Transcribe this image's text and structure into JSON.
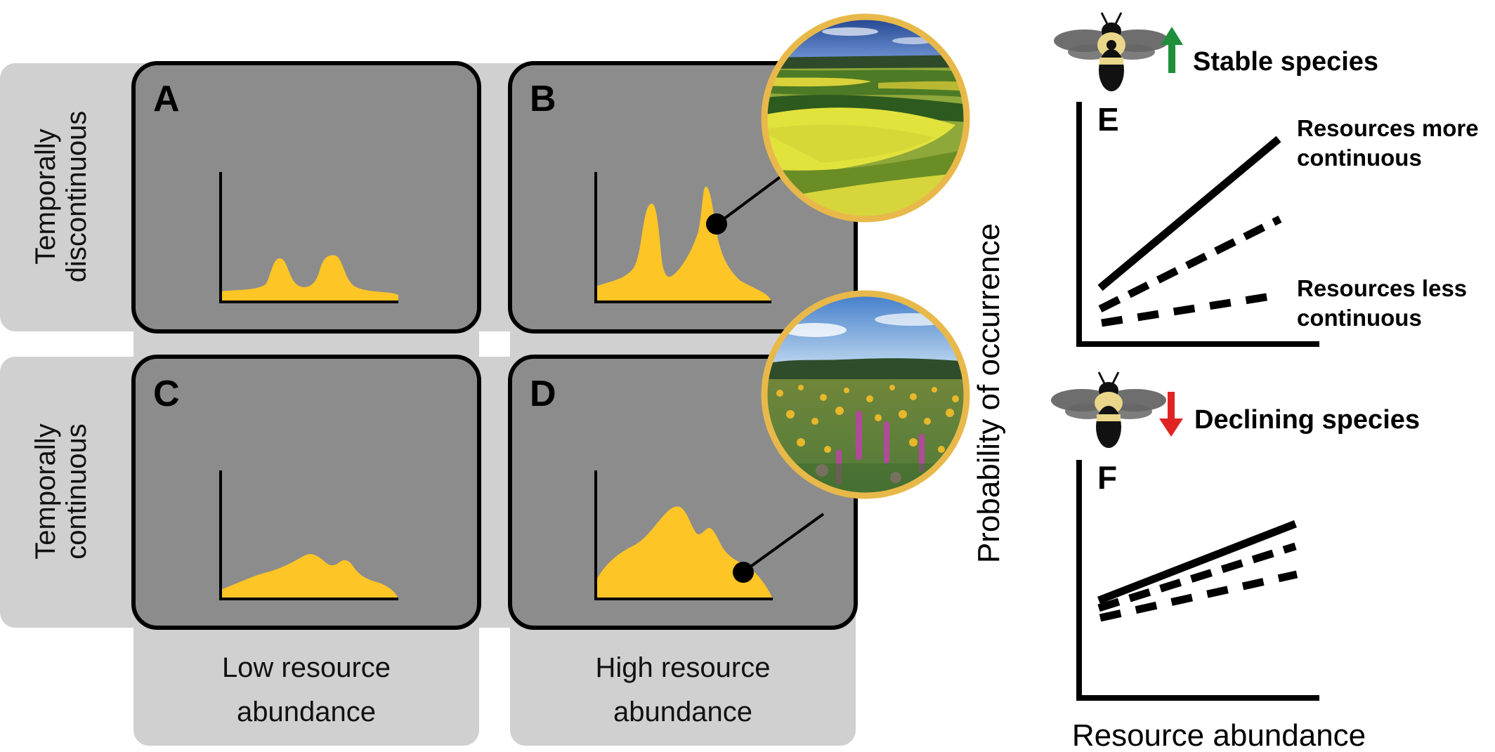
{
  "panels": {
    "A": {
      "letter": "A"
    },
    "B": {
      "letter": "B"
    },
    "C": {
      "letter": "C"
    },
    "D": {
      "letter": "D"
    },
    "E": {
      "letter": "E"
    },
    "F": {
      "letter": "F"
    }
  },
  "rows": {
    "top": {
      "line1": "Temporally",
      "line2": "discontinuous"
    },
    "bottom": {
      "line1": "Temporally",
      "line2": "continuous"
    }
  },
  "columns": {
    "left": {
      "line1": "Low resource",
      "line2": "abundance"
    },
    "right": {
      "line1": "High resource",
      "line2": "abundance"
    }
  },
  "right_panel": {
    "stable_label": "Stable species",
    "declining_label": "Declining species",
    "y_axis_label": "Probability of occurrence",
    "x_axis_label": "Resource abundance",
    "legend_more_line1": "Resources more",
    "legend_more_line2": "continuous",
    "legend_less_line1": "Resources less",
    "legend_less_line2": "continuous"
  },
  "colors": {
    "panel_bg": "#8c8c8c",
    "band_bg": "#cfcfcf",
    "resource_fill": "#fdc526",
    "ring": "#e8b94a",
    "stable_arrow": "#1f8f3a",
    "declining_arrow": "#e02424"
  }
}
